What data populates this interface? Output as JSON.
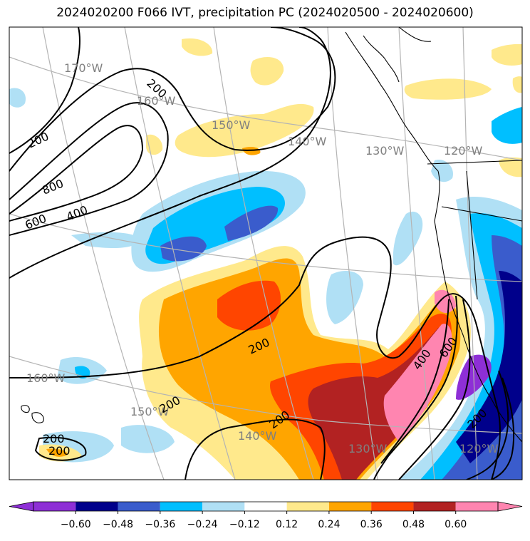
{
  "title": "2024020200 F066 IVT, precipitation PC (2024020500 - 2024020600)",
  "map": {
    "longitude_labels": [
      "170°W",
      "160°W",
      "150°W",
      "140°W",
      "130°W",
      "120°W",
      "160°W",
      "150°W",
      "140°W",
      "130°W",
      "120°W"
    ],
    "ivt_contour_labels": [
      "200",
      "200",
      "800",
      "600",
      "400",
      "200",
      "400",
      "600",
      "200",
      "200",
      "200",
      "200",
      "200"
    ]
  },
  "colorbar": {
    "tick_labels": [
      "−0.60",
      "−0.48",
      "−0.36",
      "−0.24",
      "−0.12",
      "0.12",
      "0.24",
      "0.36",
      "0.48",
      "0.60"
    ],
    "colors": [
      "#8e2fd6",
      "#00008b",
      "#3a5ccc",
      "#00bfff",
      "#b0e0f5",
      "#ffffff",
      "#ffe98c",
      "#ffa500",
      "#ff4500",
      "#b22222",
      "#ff85b0",
      "#ff85b0"
    ]
  },
  "chart_data": {
    "type": "heatmap",
    "title": "2024020200 F066 IVT, precipitation PC (2024020500 - 2024020600)",
    "colorbar_levels": [
      -0.6,
      -0.48,
      -0.36,
      -0.24,
      -0.12,
      0.12,
      0.24,
      0.36,
      0.48,
      0.6
    ],
    "ivt_contour_levels": [
      200,
      400,
      600,
      800
    ],
    "colorbar_extend": "both"
  }
}
